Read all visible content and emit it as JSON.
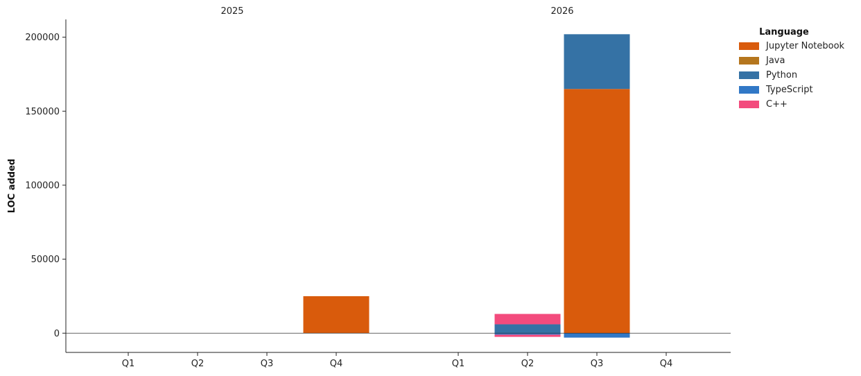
{
  "chart_data": {
    "type": "bar",
    "stacked": true,
    "ylabel": "LOC added",
    "ylim": [
      -13000,
      212000
    ],
    "yticks": [
      0,
      50000,
      100000,
      150000,
      200000
    ],
    "groups": [
      {
        "label": "2025",
        "categories": [
          "Q1",
          "Q2",
          "Q3",
          "Q4"
        ]
      },
      {
        "label": "2026",
        "categories": [
          "Q1",
          "Q2",
          "Q3",
          "Q4"
        ]
      }
    ],
    "legend": {
      "title": "Language",
      "placement": "top-right outside"
    },
    "series": [
      {
        "name": "Jupyter Notebook",
        "color": "#d95b0c",
        "values": [
          0,
          0,
          0,
          25000,
          0,
          0,
          165000,
          0
        ]
      },
      {
        "name": "Java",
        "color": "#b5761e",
        "values": [
          0,
          0,
          0,
          0,
          0,
          0,
          0,
          0
        ]
      },
      {
        "name": "Python",
        "color": "#3572a5",
        "values": [
          0,
          0,
          0,
          0,
          0,
          6000,
          37000,
          0
        ]
      },
      {
        "name": "TypeScript",
        "color": "#3178c6",
        "values": [
          0,
          0,
          0,
          0,
          0,
          -1000,
          -3000,
          0
        ]
      },
      {
        "name": "C++",
        "color": "#f34b7d",
        "values": [
          0,
          0,
          0,
          0,
          0,
          7000,
          0,
          0
        ]
      }
    ],
    "negative_stack": [
      {
        "name": "C++",
        "color": "#f34b7d",
        "values": [
          0,
          0,
          0,
          0,
          0,
          -1500,
          0,
          0
        ]
      }
    ],
    "zero_line": true,
    "grid": false
  }
}
